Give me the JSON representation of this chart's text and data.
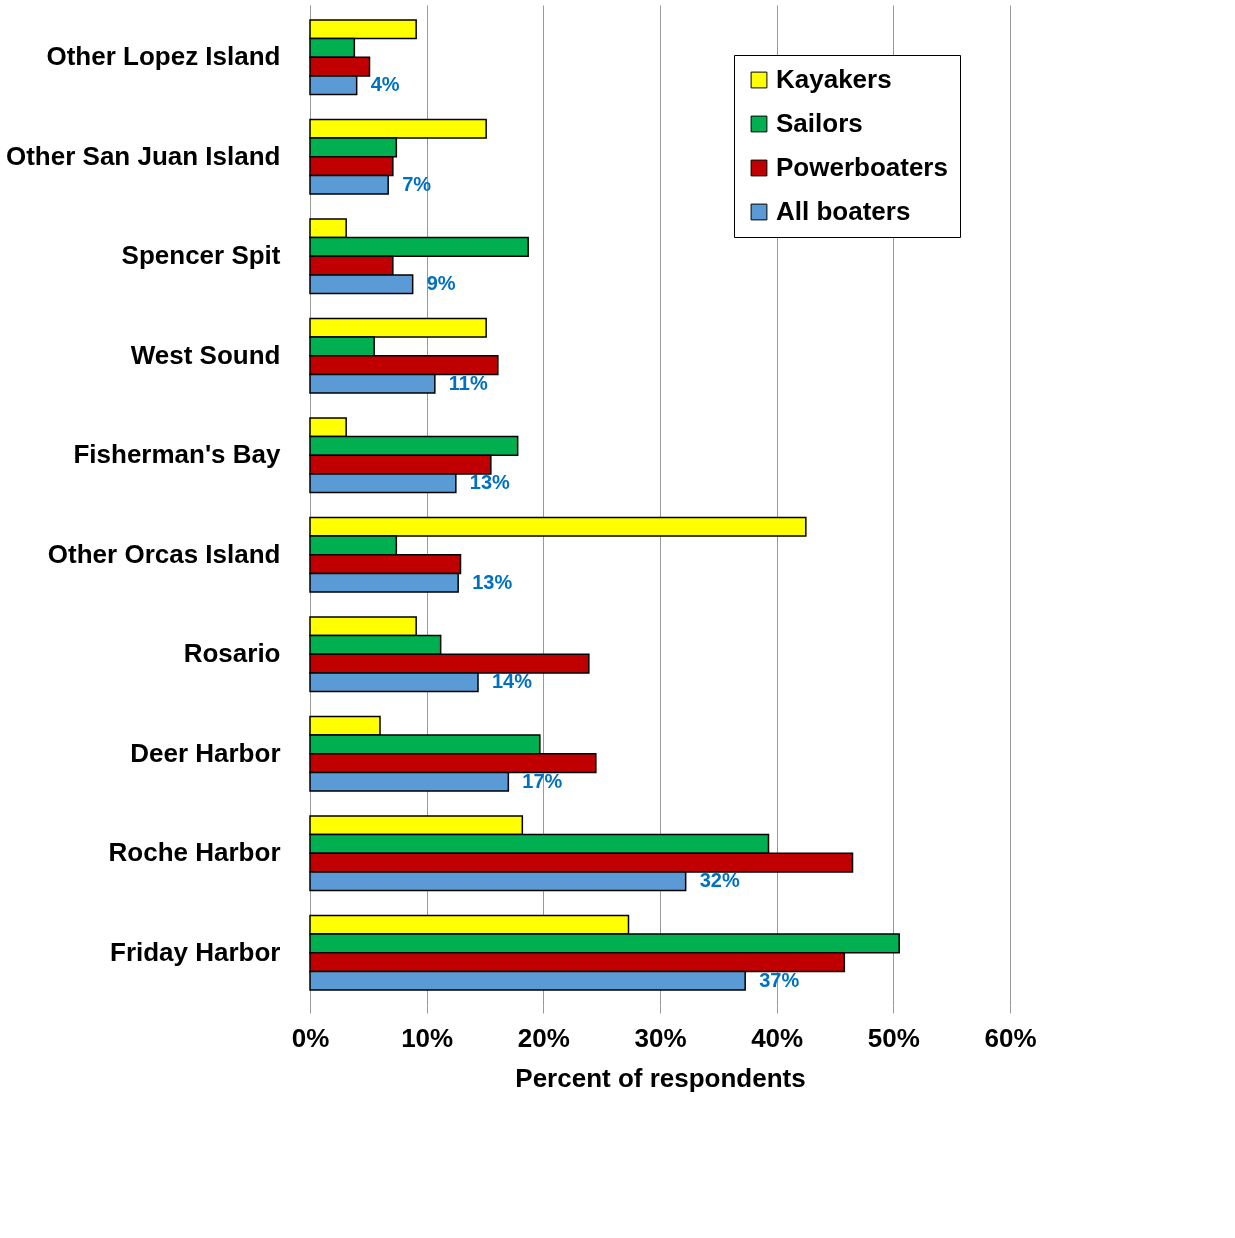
{
  "chart_data": {
    "type": "bar",
    "orientation": "horizontal",
    "xlabel": "Percent of respondents",
    "categories": [
      "Other Lopez Island",
      "Other San Juan Island",
      "Spencer Spit",
      "West Sound",
      "Fisherman's Bay",
      "Other Orcas Island",
      "Rosario",
      "Deer Harbor",
      "Roche Harbor",
      "Friday Harbor"
    ],
    "series": [
      {
        "name": "Kayakers",
        "color": "#ffff00",
        "values": [
          9.1,
          15.1,
          3.1,
          15.1,
          3.1,
          42.5,
          9.1,
          6.0,
          18.2,
          27.3
        ]
      },
      {
        "name": "Sailors",
        "color": "#00b050",
        "values": [
          3.8,
          7.4,
          18.7,
          5.5,
          17.8,
          7.4,
          11.2,
          19.7,
          39.3,
          50.5
        ]
      },
      {
        "name": "Powerboaters",
        "color": "#c00000",
        "values": [
          5.1,
          7.1,
          7.1,
          16.1,
          15.5,
          12.9,
          23.9,
          24.5,
          46.5,
          45.8
        ]
      },
      {
        "name": "All boaters",
        "color": "#5b9bd5",
        "values": [
          4.0,
          6.7,
          8.8,
          10.7,
          12.5,
          12.7,
          14.4,
          17.0,
          32.2,
          37.3
        ],
        "value_labels": [
          "4%",
          "7%",
          "9%",
          "11%",
          "13%",
          "13%",
          "14%",
          "17%",
          "32%",
          "37%"
        ]
      }
    ],
    "xlim": [
      0,
      60
    ],
    "xticks": [
      {
        "value": 0,
        "label": "0%"
      },
      {
        "value": 10,
        "label": "10%"
      },
      {
        "value": 20,
        "label": "20%"
      },
      {
        "value": 30,
        "label": "30%"
      },
      {
        "value": 40,
        "label": "40%"
      },
      {
        "value": 50,
        "label": "50%"
      },
      {
        "value": 60,
        "label": "60%"
      }
    ],
    "grid": "x",
    "legend": "top right"
  }
}
